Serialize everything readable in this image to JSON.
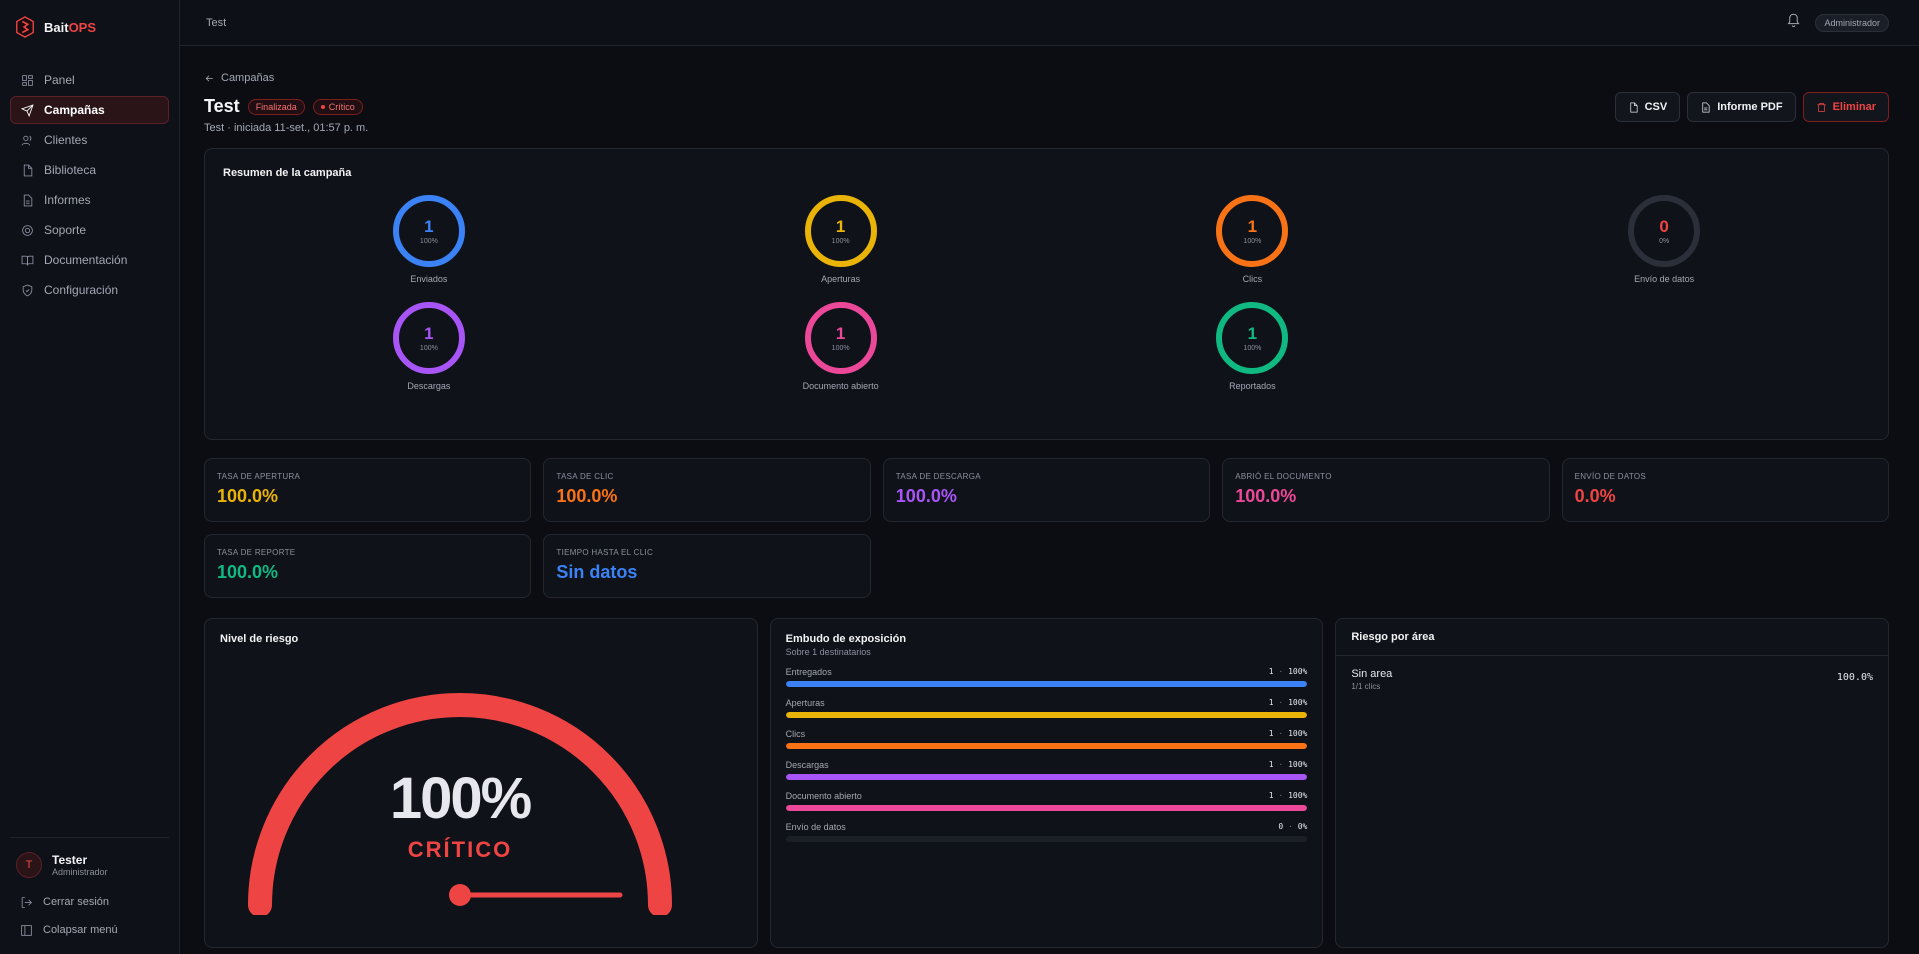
{
  "brand": {
    "prefix": "Bait",
    "suffix": "OPS"
  },
  "sidebar": {
    "items": [
      {
        "label": "Panel"
      },
      {
        "label": "Campañas"
      },
      {
        "label": "Clientes"
      },
      {
        "label": "Biblioteca"
      },
      {
        "label": "Informes"
      },
      {
        "label": "Soporte"
      },
      {
        "label": "Documentación"
      },
      {
        "label": "Configuración"
      }
    ],
    "user": {
      "initial": "T",
      "name": "Tester",
      "role": "Administrador"
    },
    "logout": "Cerrar sesión",
    "collapse": "Colapsar menú"
  },
  "topbar": {
    "title": "Test",
    "role": "Administrador"
  },
  "header": {
    "back": "Campañas",
    "title": "Test",
    "status": "Finalizada",
    "severity": "Crítico",
    "subtitle": "Test · iniciada 11-set., 01:57 p. m.",
    "csv": "CSV",
    "pdf": "Informe PDF",
    "delete": "Eliminar"
  },
  "summary": {
    "title": "Resumen de la campaña",
    "rings": [
      {
        "label": "Enviados",
        "value": "1",
        "pct": "100%",
        "color": "#3b82f6"
      },
      {
        "label": "Aperturas",
        "value": "1",
        "pct": "100%",
        "color": "#eab308"
      },
      {
        "label": "Clics",
        "value": "1",
        "pct": "100%",
        "color": "#f97316"
      },
      {
        "label": "Envío de datos",
        "value": "0",
        "pct": "0%",
        "color": "#ef4444"
      },
      {
        "label": "Descargas",
        "value": "1",
        "pct": "100%",
        "color": "#a855f7"
      },
      {
        "label": "Documento abierto",
        "value": "1",
        "pct": "100%",
        "color": "#ec4899"
      },
      {
        "label": "Reportados",
        "value": "1",
        "pct": "100%",
        "color": "#10b981"
      }
    ]
  },
  "stats": [
    {
      "label": "Tasa de apertura",
      "value": "100.0%",
      "color": "#eab308"
    },
    {
      "label": "Tasa de clic",
      "value": "100.0%",
      "color": "#f97316"
    },
    {
      "label": "Tasa de descarga",
      "value": "100.0%",
      "color": "#a855f7"
    },
    {
      "label": "Abrió el documento",
      "value": "100.0%",
      "color": "#ec4899"
    },
    {
      "label": "Envío de datos",
      "value": "0.0%",
      "color": "#ef4444"
    },
    {
      "label": "Tasa de reporte",
      "value": "100.0%",
      "color": "#10b981"
    },
    {
      "label": "Tiempo hasta el clic",
      "value": "Sin datos",
      "color": "#3b82f6"
    }
  ],
  "risk": {
    "title": "Nivel de riesgo",
    "value": "100%",
    "level": "CRÍTICO",
    "fraction": 1.0,
    "color": "#ef4444"
  },
  "funnel": {
    "title": "Embudo de exposición",
    "subtitle": "Sobre 1 destinatarios",
    "rows": [
      {
        "label": "Entregados",
        "count": "1",
        "pct": "100%",
        "fraction": 1.0,
        "color": "#3b82f6"
      },
      {
        "label": "Aperturas",
        "count": "1",
        "pct": "100%",
        "fraction": 1.0,
        "color": "#eab308"
      },
      {
        "label": "Clics",
        "count": "1",
        "pct": "100%",
        "fraction": 1.0,
        "color": "#f97316"
      },
      {
        "label": "Descargas",
        "count": "1",
        "pct": "100%",
        "fraction": 1.0,
        "color": "#a855f7"
      },
      {
        "label": "Documento abierto",
        "count": "1",
        "pct": "100%",
        "fraction": 1.0,
        "color": "#ec4899"
      },
      {
        "label": "Envío de datos",
        "count": "0",
        "pct": "0%",
        "fraction": 0.0,
        "color": "#ef4444"
      }
    ]
  },
  "area": {
    "title": "Riesgo por área",
    "rows": [
      {
        "name": "Sin area",
        "sub": "1/1 clics",
        "value": "100.0%"
      }
    ]
  }
}
